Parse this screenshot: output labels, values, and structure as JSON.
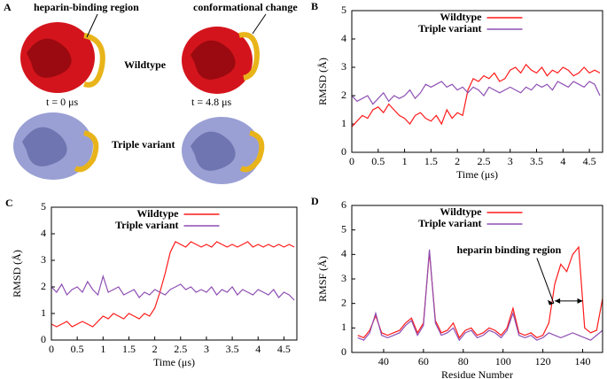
{
  "panel_a": {
    "label": "A",
    "heparin_note": "heparin-binding region",
    "change_note": "conformational change",
    "wildtype": "Wildtype",
    "t0": "t = 0 μs",
    "t1": "t = 4.8 μs",
    "triple": "Triple variant"
  },
  "chart_data": [
    {
      "type": "line",
      "panel_label": "B",
      "xlabel": "Time (μs)",
      "ylabel": "RMSD (Å)",
      "legend": "upper center",
      "xlim": [
        0,
        4.75
      ],
      "ylim": [
        0,
        5
      ],
      "xticks": [
        0,
        0.5,
        1,
        1.5,
        2,
        2.5,
        3,
        3.5,
        4,
        4.5
      ],
      "yticks": [
        0,
        1,
        2,
        3,
        4,
        5
      ],
      "x": [
        0,
        0.1,
        0.2,
        0.3,
        0.4,
        0.5,
        0.6,
        0.7,
        0.8,
        0.9,
        1,
        1.1,
        1.2,
        1.3,
        1.4,
        1.5,
        1.6,
        1.7,
        1.8,
        1.9,
        2,
        2.1,
        2.2,
        2.3,
        2.4,
        2.5,
        2.6,
        2.7,
        2.8,
        2.9,
        3,
        3.1,
        3.2,
        3.3,
        3.4,
        3.5,
        3.6,
        3.7,
        3.8,
        3.9,
        4,
        4.1,
        4.2,
        4.3,
        4.4,
        4.5,
        4.6,
        4.7
      ],
      "series": [
        {
          "name": "Wildtype",
          "color": "#ff1a1a",
          "values": [
            0.9,
            1.1,
            1.3,
            1.2,
            1.5,
            1.6,
            1.4,
            1.7,
            1.5,
            1.3,
            1.2,
            1.0,
            1.3,
            1.4,
            1.2,
            1.1,
            1.3,
            1.0,
            1.5,
            1.2,
            1.4,
            1.3,
            2.2,
            2.6,
            2.5,
            2.7,
            2.6,
            2.8,
            2.5,
            2.6,
            2.9,
            3.0,
            2.8,
            3.1,
            2.9,
            2.8,
            3.0,
            2.7,
            2.9,
            2.8,
            3.0,
            2.9,
            2.7,
            2.8,
            3.0,
            2.8,
            2.9,
            2.8
          ]
        },
        {
          "name": "Triple variant",
          "color": "#8e4fb3",
          "values": [
            2.0,
            1.8,
            1.9,
            2.0,
            1.7,
            1.9,
            2.1,
            1.8,
            2.0,
            1.9,
            2.0,
            2.2,
            1.9,
            2.1,
            2.4,
            2.3,
            2.4,
            2.5,
            2.3,
            2.4,
            2.2,
            2.3,
            2.1,
            2.3,
            2.2,
            2.0,
            2.3,
            2.2,
            2.1,
            2.2,
            2.3,
            2.2,
            2.1,
            2.3,
            2.2,
            2.4,
            2.3,
            2.4,
            2.2,
            2.5,
            2.4,
            2.3,
            2.5,
            2.4,
            2.3,
            2.5,
            2.4,
            2.0
          ]
        }
      ]
    },
    {
      "type": "line",
      "panel_label": "C",
      "xlabel": "Time (μs)",
      "ylabel": "RMSD (Å)",
      "legend": "upper center",
      "xlim": [
        0,
        4.75
      ],
      "ylim": [
        0,
        5
      ],
      "xticks": [
        0,
        0.5,
        1,
        1.5,
        2,
        2.5,
        3,
        3.5,
        4,
        4.5
      ],
      "yticks": [
        0,
        1,
        2,
        3,
        4,
        5
      ],
      "x": [
        0,
        0.1,
        0.2,
        0.3,
        0.4,
        0.5,
        0.6,
        0.7,
        0.8,
        0.9,
        1,
        1.1,
        1.2,
        1.3,
        1.4,
        1.5,
        1.6,
        1.7,
        1.8,
        1.9,
        2,
        2.1,
        2.2,
        2.3,
        2.4,
        2.5,
        2.6,
        2.7,
        2.8,
        2.9,
        3,
        3.1,
        3.2,
        3.3,
        3.4,
        3.5,
        3.6,
        3.7,
        3.8,
        3.9,
        4,
        4.1,
        4.2,
        4.3,
        4.4,
        4.5,
        4.6,
        4.7
      ],
      "series": [
        {
          "name": "Wildtype",
          "color": "#ff1a1a",
          "values": [
            0.6,
            0.5,
            0.6,
            0.7,
            0.5,
            0.6,
            0.7,
            0.6,
            0.5,
            0.7,
            0.9,
            0.8,
            1.0,
            0.9,
            0.8,
            1.0,
            0.9,
            0.8,
            1.0,
            0.9,
            1.2,
            1.8,
            2.5,
            3.3,
            3.7,
            3.6,
            3.5,
            3.7,
            3.6,
            3.5,
            3.6,
            3.5,
            3.7,
            3.6,
            3.5,
            3.6,
            3.5,
            3.6,
            3.7,
            3.5,
            3.6,
            3.5,
            3.6,
            3.5,
            3.6,
            3.5,
            3.6,
            3.5
          ]
        },
        {
          "name": "Triple variant",
          "color": "#8e4fb3",
          "values": [
            2.0,
            1.8,
            2.1,
            1.7,
            1.9,
            2.0,
            1.8,
            2.2,
            1.9,
            1.7,
            2.4,
            1.8,
            1.9,
            2.0,
            1.7,
            1.8,
            1.9,
            1.6,
            1.8,
            1.7,
            1.9,
            1.8,
            1.7,
            1.9,
            2.0,
            2.1,
            1.9,
            2.0,
            1.8,
            1.9,
            1.8,
            2.0,
            1.7,
            1.9,
            1.8,
            2.0,
            1.7,
            1.9,
            1.8,
            1.7,
            1.9,
            1.8,
            1.7,
            1.9,
            1.6,
            1.8,
            1.7,
            1.5
          ]
        }
      ]
    },
    {
      "type": "line",
      "panel_label": "D",
      "xlabel": "Residue Number",
      "ylabel": "RMSF (Å)",
      "legend": "upper center",
      "annotation": "heparin binding region",
      "xlim": [
        24,
        150
      ],
      "ylim": [
        0,
        6
      ],
      "xticks": [
        40,
        60,
        80,
        100,
        120,
        140
      ],
      "yticks": [
        0,
        1,
        2,
        3,
        4,
        5,
        6
      ],
      "x": [
        27,
        30,
        33,
        36,
        39,
        42,
        45,
        48,
        51,
        54,
        57,
        60,
        63,
        66,
        69,
        72,
        75,
        78,
        81,
        84,
        87,
        90,
        93,
        96,
        99,
        102,
        105,
        108,
        111,
        114,
        117,
        120,
        123,
        126,
        129,
        132,
        135,
        138,
        141,
        144,
        147,
        150
      ],
      "series": [
        {
          "name": "Wildtype",
          "color": "#ff1a1a",
          "values": [
            0.7,
            0.6,
            0.9,
            1.5,
            0.8,
            0.7,
            0.8,
            0.9,
            1.2,
            1.4,
            0.8,
            1.2,
            4.1,
            1.3,
            0.8,
            0.9,
            1.2,
            0.6,
            0.9,
            1.0,
            0.7,
            0.8,
            1.0,
            0.9,
            0.7,
            1.0,
            1.8,
            0.8,
            0.7,
            0.8,
            0.6,
            0.7,
            1.2,
            2.8,
            3.6,
            3.3,
            4.0,
            4.3,
            1.0,
            0.8,
            0.9,
            2.2
          ]
        },
        {
          "name": "Triple variant",
          "color": "#8e4fb3",
          "values": [
            0.6,
            0.5,
            0.8,
            1.6,
            0.7,
            0.6,
            0.7,
            0.8,
            1.1,
            1.3,
            0.7,
            1.1,
            4.2,
            1.2,
            0.7,
            0.8,
            1.0,
            0.5,
            0.8,
            0.9,
            0.6,
            0.7,
            0.9,
            0.8,
            0.6,
            0.9,
            1.6,
            0.7,
            0.6,
            0.7,
            0.5,
            0.6,
            0.8,
            0.7,
            0.6,
            0.7,
            0.8,
            0.7,
            0.6,
            0.5,
            0.7,
            0.9
          ]
        }
      ]
    }
  ]
}
